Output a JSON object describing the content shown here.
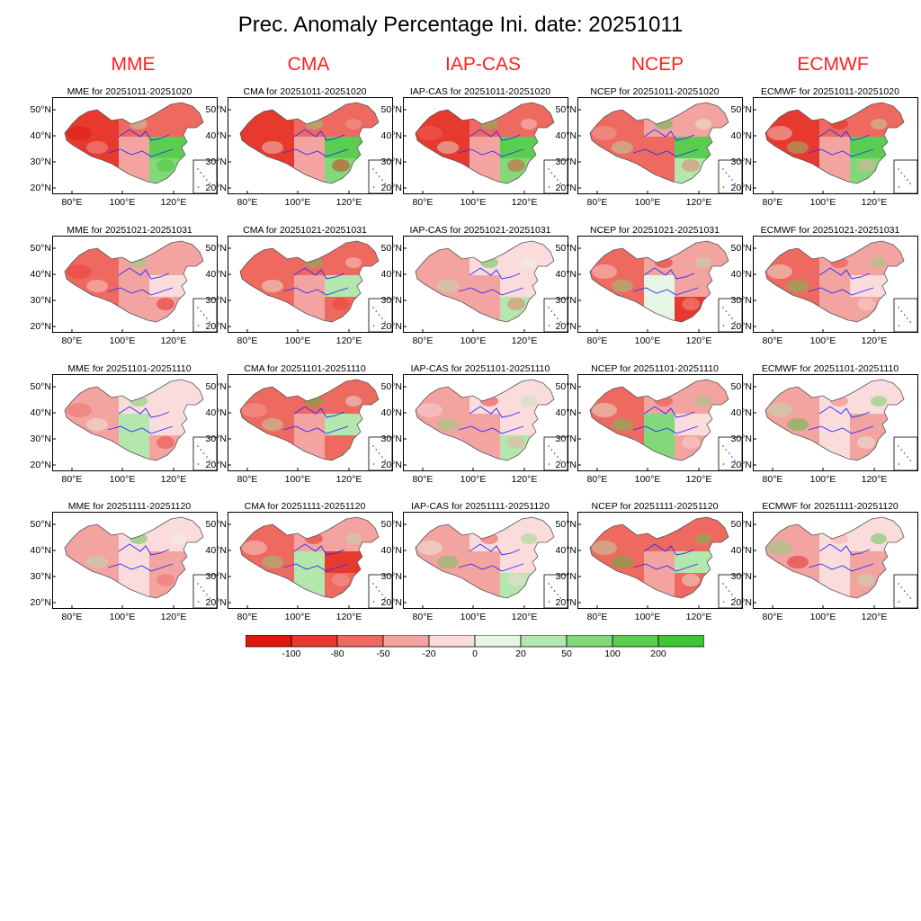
{
  "title": "Prec. Anomaly Percentage Ini. date: 20251011",
  "models": [
    "MME",
    "CMA",
    "IAP-CAS",
    "NCEP",
    "ECMWF"
  ],
  "periods": [
    "20251011-20251020",
    "20251021-20251031",
    "20251101-20251110",
    "20251111-20251120"
  ],
  "panel_title_template": "{model} for {period}",
  "lat_ticks": [
    "50°N",
    "40°N",
    "30°N",
    "20°N"
  ],
  "lon_ticks": [
    "80°E",
    "100°E",
    "120°E"
  ],
  "colorbar": {
    "labels": [
      "-100",
      "-80",
      "-50",
      "-20",
      "0",
      "20",
      "50",
      "100",
      "200"
    ],
    "colors": [
      "#e0190f",
      "#e8392e",
      "#ee6a60",
      "#f3a3a0",
      "#fbdcdc",
      "#e6f6e4",
      "#b4e7ae",
      "#83d97a",
      "#5bcd51",
      "#3ec635"
    ]
  },
  "map_colors": {
    "boundary": "#2a2aff",
    "border": "#555555"
  },
  "panel_patterns": [
    [
      "dry-west wet-east strong",
      "dry-west wet-east strong",
      "dry-west wet-east strong",
      "mixed wet-east",
      "dry-west wet-east strong"
    ],
    [
      "dry moderate",
      "dry mixed",
      "dry light wet-south",
      "dry strong south",
      "dry moderate"
    ],
    [
      "dry light wet-sw",
      "dry mixed south",
      "dry light wet-south",
      "dry west wet-sw",
      "dry light"
    ],
    [
      "dry light",
      "dry strong east",
      "dry light wet-south",
      "dry mixed",
      "dry light"
    ]
  ]
}
